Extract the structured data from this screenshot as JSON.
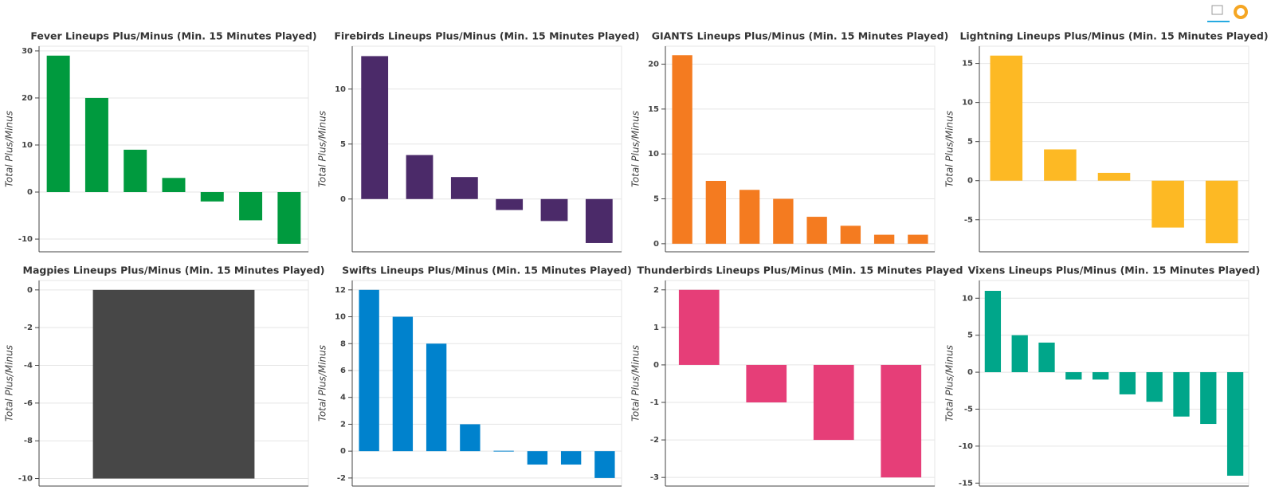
{
  "chart_data": [
    {
      "type": "bar",
      "title": "Fever Lineups Plus/Minus (Min. 15 Minutes Played)",
      "ylabel": "Total Plus/Minus",
      "values": [
        29,
        20,
        9,
        3,
        -2,
        -6,
        -11
      ],
      "color": "#009a3e",
      "ylim": [
        -12.7,
        31
      ],
      "yticks": [
        -10,
        0,
        10,
        20,
        30
      ],
      "grid": true
    },
    {
      "type": "bar",
      "title": "Firebirds Lineups Plus/Minus (Min. 15 Minutes Played)",
      "ylabel": "Total Plus/Minus",
      "values": [
        13,
        4,
        2,
        -1,
        -2,
        -4
      ],
      "color": "#4b2a69",
      "ylim": [
        -4.8,
        13.9
      ],
      "yticks": [
        0,
        5,
        10
      ],
      "grid": true
    },
    {
      "type": "bar",
      "title": "GIANTS Lineups Plus/Minus (Min. 15 Minutes Played)",
      "ylabel": "Total Plus/Minus",
      "values": [
        21,
        7,
        6,
        5,
        3,
        2,
        1,
        1
      ],
      "color": "#f47b20",
      "ylim": [
        -0.9,
        22
      ],
      "yticks": [
        0,
        5,
        10,
        15,
        20
      ],
      "grid": true
    },
    {
      "type": "bar",
      "title": "Lightning Lineups Plus/Minus (Min. 15 Minutes Played)",
      "ylabel": "Total Plus/Minus",
      "values": [
        16,
        4,
        1,
        -6,
        -8
      ],
      "color": "#fdb924",
      "ylim": [
        -9.1,
        17.2
      ],
      "yticks": [
        -5,
        0,
        5,
        10,
        15
      ],
      "grid": true
    },
    {
      "type": "bar",
      "title": "Magpies Lineups Plus/Minus (Min. 15 Minutes Played)",
      "ylabel": "Total Plus/Minus",
      "values": [
        -10
      ],
      "color": "#474747",
      "ylim": [
        -10.4,
        0.5
      ],
      "yticks": [
        -10,
        -8,
        -6,
        -4,
        -2,
        0
      ],
      "grid": true
    },
    {
      "type": "bar",
      "title": "Swifts Lineups Plus/Minus (Min. 15 Minutes Played)",
      "ylabel": "Total Plus/Minus",
      "values": [
        12,
        10,
        8,
        2,
        0,
        -1,
        -1,
        -2
      ],
      "color": "#0082cd",
      "ylim": [
        -2.6,
        12.7
      ],
      "yticks": [
        -2,
        0,
        2,
        4,
        6,
        8,
        10,
        12
      ],
      "grid": true
    },
    {
      "type": "bar",
      "title": "Thunderbirds Lineups Plus/Minus (Min. 15 Minutes Played",
      "ylabel": "Total Plus/Minus",
      "values": [
        2,
        -1,
        -2,
        -3
      ],
      "color": "#e63e78",
      "ylim": [
        -3.23,
        2.25
      ],
      "yticks": [
        -3,
        -2,
        -1,
        0,
        1,
        2
      ],
      "grid": true
    },
    {
      "type": "bar",
      "title": "Vixens Lineups Plus/Minus (Min. 15 Minutes Played)",
      "ylabel": "Total Plus/Minus",
      "values": [
        11,
        5,
        4,
        -1,
        -1,
        -3,
        -4,
        -6,
        -7,
        -14
      ],
      "color": "#00a68a",
      "ylim": [
        -15.4,
        12.4
      ],
      "yticks": [
        -15,
        -10,
        -5,
        0,
        5,
        10
      ],
      "grid": true
    }
  ]
}
